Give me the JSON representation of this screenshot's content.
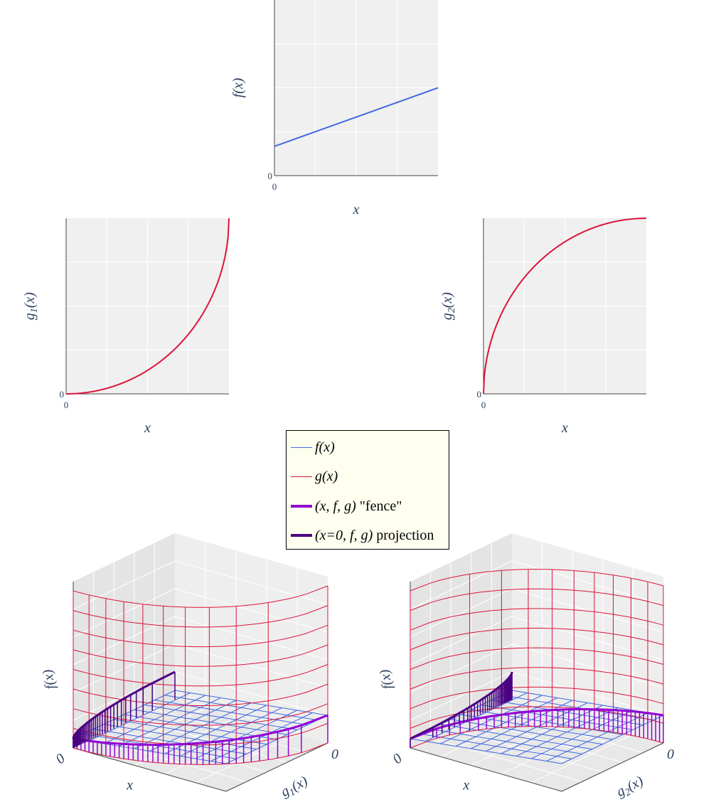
{
  "chart_data": [
    {
      "id": "top",
      "type": "line",
      "xlabel": "x",
      "ylabel": "f(x)",
      "x_ticks": [
        "0"
      ],
      "y_ticks": [
        "0"
      ],
      "xlim": [
        0,
        1
      ],
      "ylim": [
        0,
        1.2
      ],
      "series": [
        {
          "name": "f(x)",
          "x": [
            0,
            1
          ],
          "y": [
            0.2,
            0.6
          ],
          "color": "#4169e1"
        }
      ]
    },
    {
      "id": "left",
      "type": "line",
      "xlabel": "x",
      "ylabel": "g1(x)",
      "ylabel_base": "g",
      "ylabel_sub": "1",
      "ylabel_tail": "(x)",
      "x_ticks": [
        "0"
      ],
      "y_ticks": [
        "0"
      ],
      "xlim": [
        0,
        1
      ],
      "ylim": [
        0,
        1
      ],
      "series": [
        {
          "name": "g(x)",
          "function": "1 - sqrt(1 - x^2)",
          "color": "#dc143c"
        }
      ]
    },
    {
      "id": "right",
      "type": "line",
      "xlabel": "x",
      "ylabel": "g2(x)",
      "ylabel_base": "g",
      "ylabel_sub": "2",
      "ylabel_tail": "(x)",
      "x_ticks": [
        "0"
      ],
      "y_ticks": [
        "0"
      ],
      "xlim": [
        0,
        1
      ],
      "ylim": [
        0,
        1
      ],
      "series": [
        {
          "name": "g(x)",
          "function": "sqrt(1 - (1 - x)^2)",
          "color": "#dc143c"
        }
      ]
    },
    {
      "id": "scene1",
      "type": "surface3d",
      "xlabel": "x",
      "ylabel": "f(x)",
      "zlabel": "g1(x)",
      "zlabel_base": "g",
      "zlabel_sub": "1",
      "zlabel_tail": "(x)",
      "tick_origin": "0",
      "tick_z": "0",
      "g_function": "1 - sqrt(1 - x^2)"
    },
    {
      "id": "scene2",
      "type": "surface3d",
      "xlabel": "x",
      "ylabel": "f(x)",
      "zlabel": "g2(x)",
      "zlabel_base": "g",
      "zlabel_sub": "2",
      "zlabel_tail": "(x)",
      "tick_origin": "0",
      "tick_z": "0",
      "g_function": "sqrt(1 - (1 - x)^2)"
    }
  ],
  "legend": {
    "items": [
      {
        "label_it": "f(x)",
        "label_rest": "",
        "color": "#4169e1",
        "width": 1.5
      },
      {
        "label_it": "g(x)",
        "label_rest": "",
        "color": "#dc143c",
        "width": 1.5
      },
      {
        "label_it": "(x, f, g)",
        "label_rest": " \"fence\"",
        "color": "#9400d3",
        "width": 4
      },
      {
        "label_it": "(x=0, f, g)",
        "label_rest": " projection",
        "color": "#4b0082",
        "width": 4
      }
    ]
  },
  "colors": {
    "plot_bg": "#f0f0f0",
    "grid": "#ffffff",
    "axis_line": "#444444",
    "text": "#2a3f5f",
    "f": "#4169e1",
    "g": "#dc143c",
    "fence": "#9400d3",
    "projection": "#4b0082"
  }
}
